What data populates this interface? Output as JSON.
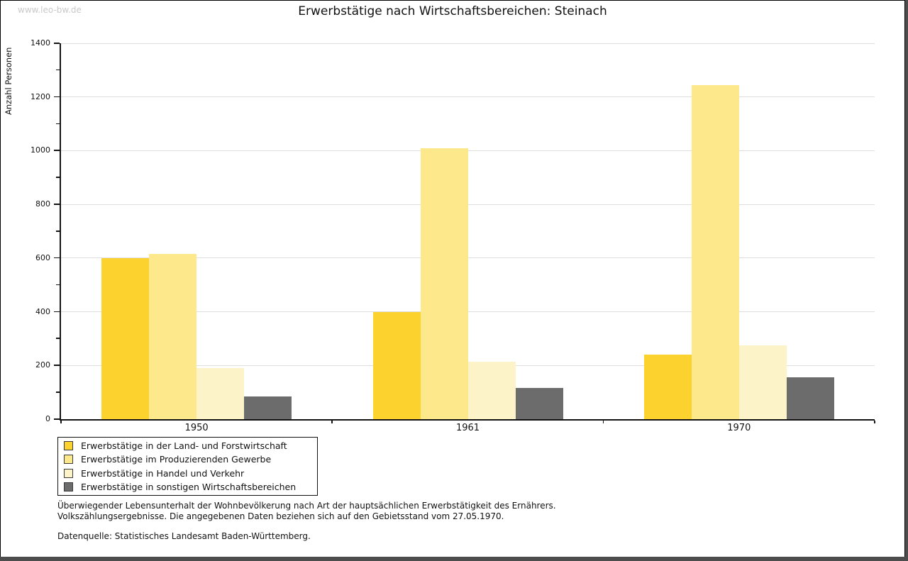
{
  "window": {
    "watermark": "www.leo-bw.de"
  },
  "chart_data": {
    "type": "bar",
    "title": "Erwerbstätige nach Wirtschaftsbereichen: Steinach",
    "xlabel": "",
    "ylabel": "Anzahl Personen",
    "categories": [
      "1950",
      "1961",
      "1970"
    ],
    "series": [
      {
        "name": "Erwerbstätige in der Land- und Forstwirtschaft",
        "color": "#FBD22E",
        "values": [
          600,
          400,
          240
        ]
      },
      {
        "name": "Erwerbstätige im Produzierenden Gewerbe",
        "color": "#FDE88C",
        "values": [
          615,
          1010,
          1245
        ]
      },
      {
        "name": "Erwerbstätige in Handel und Verkehr",
        "color": "#FCF3C8",
        "values": [
          190,
          215,
          275
        ]
      },
      {
        "name": "Erwerbstätige in sonstigen Wirtschaftsbereichen",
        "color": "#6C6C6C",
        "values": [
          85,
          115,
          155
        ]
      }
    ],
    "ylim": [
      0,
      1400
    ],
    "y_major_step": 200,
    "y_minor_step": 100,
    "grid": true,
    "gridline_color": "#dedede",
    "axis_color": "#141414",
    "legend_position": "bottom-left"
  },
  "footnotes": {
    "line1": "Überwiegender Lebensunterhalt der Wohnbevölkerung nach Art der hauptsächlichen Erwerbstätigkeit des Ernährers.",
    "line2": "Volkszählungsergebnisse. Die angegebenen Daten beziehen sich auf den Gebietsstand vom 27.05.1970.",
    "source": "Datenquelle: Statistisches Landesamt Baden-Württemberg."
  }
}
